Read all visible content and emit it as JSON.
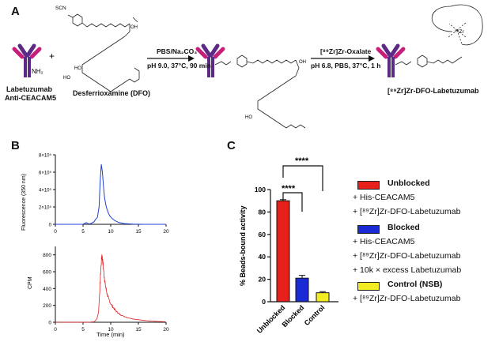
{
  "panel_a": {
    "letter": "A",
    "antibody_label_1": "Labetuzumab",
    "antibody_label_2": "Anti-CEACAM5",
    "nh2": "NH₂",
    "plus": "+",
    "scn": "SCN",
    "dfo_label": "Desferrioxamine (DFO)",
    "arrow1_top": "PBS/Na₂CO₃",
    "arrow1_bottom": "pH 9.0, 37°C, 90 min",
    "arrow2_top": "[⁸⁹Zr]Zr-Oxalate",
    "arrow2_bottom": "pH 6.8, PBS, 37°C, 1 h",
    "product_label": "[⁸⁹Zr]Zr-DFO-Labetuzumab",
    "zr_label": "⁸⁹Zr",
    "oh": "OH",
    "ho": "HO",
    "o": "O",
    "n": "N",
    "h": "H",
    "s": "S"
  },
  "panel_b": {
    "letter": "B",
    "top": {
      "ylabel": "Fluorescence (350 nm)",
      "yticks": [
        "0",
        "2×10⁵",
        "4×10⁵",
        "6×10⁵",
        "8×10⁵"
      ],
      "xticks": [
        "0",
        "5",
        "10",
        "15",
        "20"
      ],
      "color": "#1f3fd8"
    },
    "bottom": {
      "ylabel": "CPM",
      "yticks": [
        "0",
        "200",
        "400",
        "600",
        "800"
      ],
      "xticks": [
        "0",
        "5",
        "10",
        "15",
        "20"
      ],
      "xlabel": "Time (min)",
      "color": "#e02020"
    }
  },
  "panel_c": {
    "letter": "C",
    "significance": "****",
    "legend": {
      "unblocked_title": "Unblocked",
      "unblocked_1": "+ His-CEACAM5",
      "unblocked_2": "+ [⁸⁹Zr]Zr-DFO-Labetuzumab",
      "blocked_title": "Blocked",
      "blocked_1": "+ His-CEACAM5",
      "blocked_2": "+ [⁸⁹Zr]Zr-DFO-Labetuzumab",
      "blocked_3": "+ 10k × excess Labetuzumab",
      "control_title": "Control (NSB)",
      "control_1": "+ [⁸⁹Zr]Zr-DFO-Labetuzumab"
    },
    "colors": {
      "unblocked": "#e8201c",
      "blocked": "#1a2bd6",
      "control": "#f2ec22"
    }
  },
  "chart_data": [
    {
      "type": "line",
      "panel": "B-top",
      "ylabel": "Fluorescence (350 nm)",
      "ylim": [
        0,
        800000
      ],
      "xlim": [
        0,
        20
      ],
      "series": [
        {
          "x": [
            0,
            5,
            5.6,
            6.0,
            6.4,
            7.0,
            7.3,
            7.6,
            7.9,
            8.1,
            8.3,
            8.5,
            8.7,
            8.9,
            9.2,
            9.5,
            9.8,
            10.2,
            10.8,
            11.5,
            12.5,
            14,
            16,
            20
          ],
          "y": [
            0,
            0,
            20000,
            5000,
            8000,
            30000,
            60000,
            80000,
            200000,
            500000,
            690000,
            600000,
            430000,
            300000,
            200000,
            140000,
            100000,
            70000,
            40000,
            20000,
            8000,
            2000,
            0,
            0
          ]
        }
      ]
    },
    {
      "type": "line",
      "panel": "B-bottom",
      "ylabel": "CPM",
      "xlabel": "Time (min)",
      "ylim": [
        0,
        900
      ],
      "xlim": [
        0,
        20
      ],
      "series": [
        {
          "x": [
            0,
            6,
            7.0,
            7.5,
            7.8,
            8.0,
            8.2,
            8.4,
            8.6,
            8.8,
            9.0,
            9.3,
            9.6,
            10.0,
            10.5,
            11,
            11.5,
            12,
            13,
            14,
            15,
            16,
            17,
            18,
            19,
            20
          ],
          "y": [
            0,
            0,
            5,
            40,
            120,
            350,
            620,
            800,
            700,
            560,
            450,
            350,
            280,
            220,
            170,
            130,
            100,
            80,
            55,
            40,
            30,
            22,
            16,
            12,
            8,
            5
          ]
        }
      ]
    },
    {
      "type": "bar",
      "panel": "C",
      "ylabel": "% Beads-bound activity",
      "ylim": [
        0,
        100
      ],
      "yticks": [
        0,
        20,
        40,
        60,
        80,
        100
      ],
      "categories": [
        "Unblocked",
        "Blocked",
        "Control"
      ],
      "values": [
        90,
        21,
        8
      ],
      "errors": [
        1,
        2.5,
        1
      ],
      "colors": [
        "#e8201c",
        "#1a2bd6",
        "#f2ec22"
      ]
    }
  ]
}
